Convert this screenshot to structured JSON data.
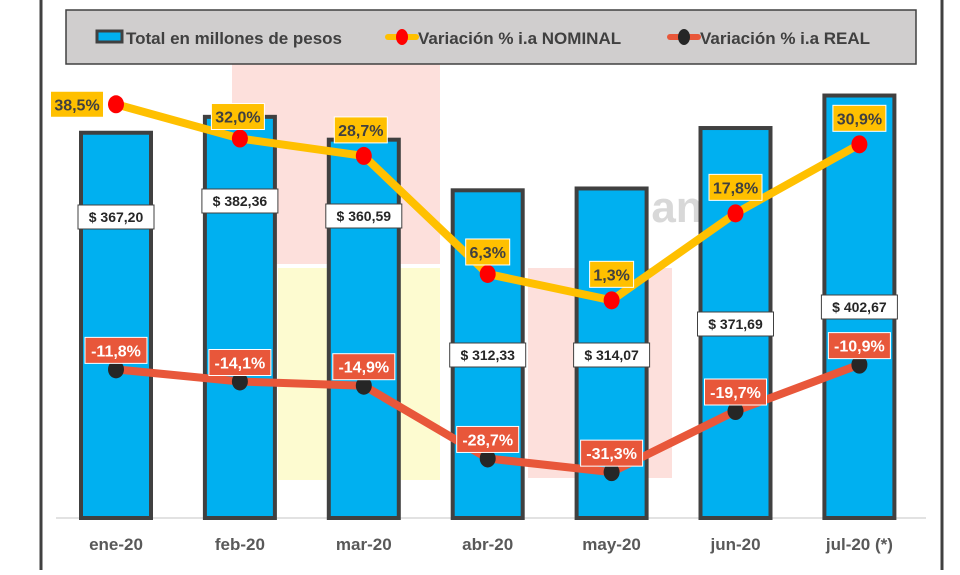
{
  "chart_data": {
    "type": "bar+line",
    "categories": [
      "ene-20",
      "feb-20",
      "mar-20",
      "abr-20",
      "may-20",
      "jun-20",
      "jul-20 (*)"
    ],
    "series": [
      {
        "name": "Total en millones de pesos",
        "kind": "bar",
        "axis": "primary",
        "values": [
          367.2,
          382.36,
          360.59,
          312.33,
          314.07,
          371.69,
          402.67
        ],
        "labels": [
          "$ 367,20",
          "$ 382,36",
          "$ 360,59",
          "$ 312,33",
          "$ 314,07",
          "$ 371,69",
          "$ 402,67"
        ],
        "color": "#00B0F0"
      },
      {
        "name": "Variación % i.a NOMINAL",
        "kind": "line",
        "axis": "secondary",
        "values": [
          38.5,
          32.0,
          28.7,
          6.3,
          1.3,
          17.8,
          30.9
        ],
        "labels": [
          "38,5%",
          "32,0%",
          "28,7%",
          "6,3%",
          "1,3%",
          "17,8%",
          "30,9%"
        ],
        "color": "#FFC000",
        "marker_color": "#FF0000"
      },
      {
        "name": "Variación % i.a REAL",
        "kind": "line",
        "axis": "secondary",
        "values": [
          -11.8,
          -14.1,
          -14.9,
          -28.7,
          -31.3,
          -19.7,
          -10.9
        ],
        "labels": [
          "-11,8%",
          "-14,1%",
          "-14,9%",
          "-28,7%",
          "-31,3%",
          "-19,7%",
          "-10,9%"
        ],
        "color": "#E8573A",
        "marker_color": "#262626"
      }
    ],
    "ylim": [
      0,
      427
    ],
    "y2lim": [
      -40,
      45
    ],
    "grid": false,
    "legend": "top"
  }
}
